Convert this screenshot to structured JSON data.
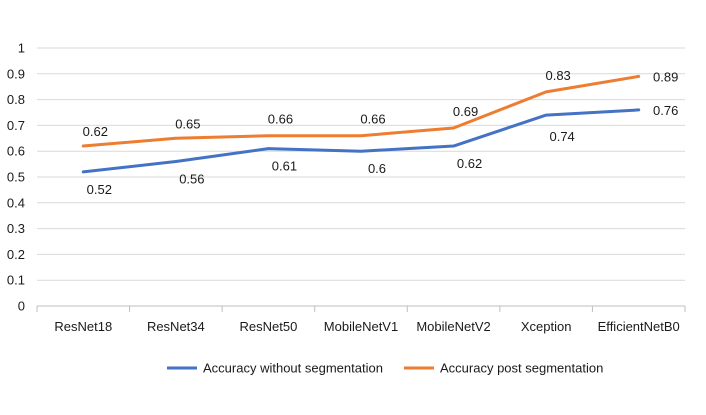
{
  "chart_data": {
    "type": "line",
    "title": "",
    "xlabel": "",
    "ylabel": "",
    "categories": [
      "ResNet18",
      "ResNet34",
      "ResNet50",
      "MobileNetV1",
      "MobileNetV2",
      "Xception",
      "EfficientNetB0"
    ],
    "ylim": [
      0,
      1
    ],
    "yticks": [
      "0",
      "0.1",
      "0.2",
      "0.3",
      "0.4",
      "0.5",
      "0.6",
      "0.7",
      "0.8",
      "0.9",
      "1"
    ],
    "grid": true,
    "legend_position": "bottom",
    "series": [
      {
        "name": "Accuracy without segmentation",
        "color": "#4472C4",
        "values": [
          0.52,
          0.56,
          0.61,
          0.6,
          0.62,
          0.74,
          0.76
        ],
        "labels": [
          "0.52",
          "0.56",
          "0.61",
          "0.6",
          "0.62",
          "0.74",
          "0.76"
        ]
      },
      {
        "name": "Accuracy post segmentation",
        "color": "#ED7D31",
        "values": [
          0.62,
          0.65,
          0.66,
          0.66,
          0.69,
          0.83,
          0.89
        ],
        "labels": [
          "0.62",
          "0.65",
          "0.66",
          "0.66",
          "0.69",
          "0.83",
          "0.89"
        ]
      }
    ]
  }
}
